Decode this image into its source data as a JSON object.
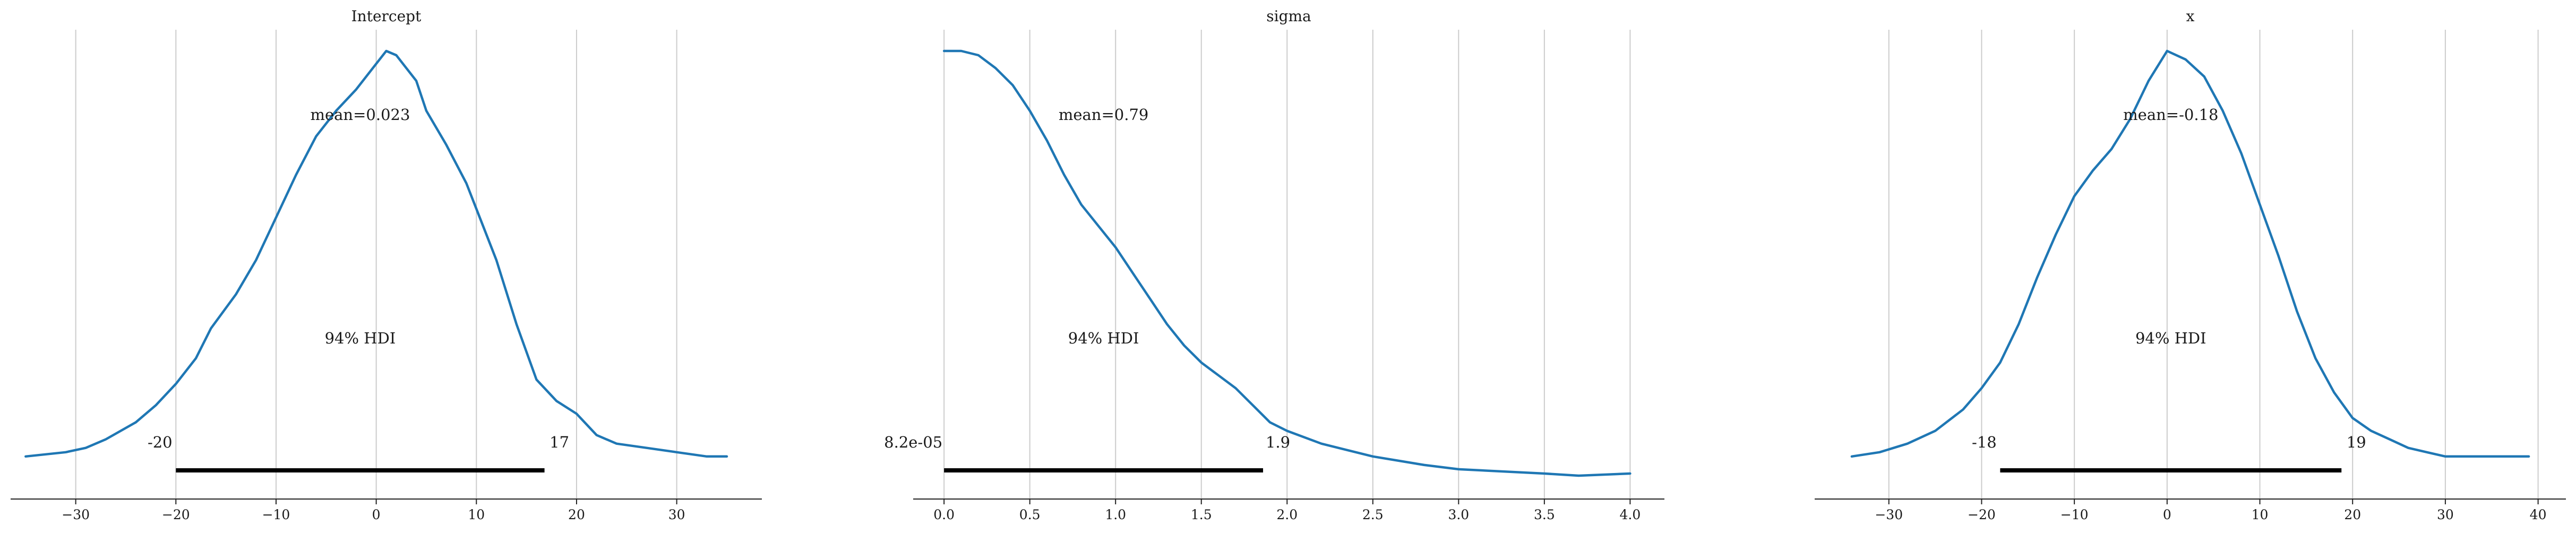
{
  "chart_data": [
    {
      "type": "line",
      "title": "Intercept",
      "mean_label": "mean=0.023",
      "hdi_label": "94% HDI",
      "hdi_low_label": "-20",
      "hdi_high_label": "17",
      "hdi": [
        -20,
        16.8
      ],
      "xlim": [
        -36.5,
        38.5
      ],
      "ylim": [
        0,
        1
      ],
      "xticks": [
        -30,
        -20,
        -10,
        0,
        10,
        20,
        30
      ],
      "xtick_labels": [
        "−30",
        "−20",
        "−10",
        "0",
        "10",
        "20",
        "30"
      ],
      "grid": true,
      "line_color": "#1f77b4",
      "series": [
        {
          "x": [
            -35,
            -31,
            -29,
            -27,
            -24,
            -22,
            -20,
            -18,
            -16.5,
            -14,
            -12,
            -10,
            -8,
            -6,
            -4,
            -2,
            0,
            1,
            2,
            4,
            5,
            7,
            9,
            10,
            12,
            14,
            16,
            18,
            20,
            22,
            24,
            27,
            30,
            33,
            35
          ],
          "y": [
            0.05,
            0.06,
            0.07,
            0.09,
            0.13,
            0.17,
            0.22,
            0.28,
            0.35,
            0.43,
            0.51,
            0.61,
            0.71,
            0.8,
            0.86,
            0.91,
            0.97,
            1.0,
            0.99,
            0.93,
            0.86,
            0.78,
            0.69,
            0.63,
            0.51,
            0.36,
            0.23,
            0.18,
            0.15,
            0.1,
            0.08,
            0.07,
            0.06,
            0.05,
            0.05
          ]
        }
      ]
    },
    {
      "type": "line",
      "title": "sigma",
      "mean_label": "mean=0.79",
      "hdi_label": "94% HDI",
      "hdi_low_label": "8.2e-05",
      "hdi_high_label": "1.9",
      "hdi": [
        0.0,
        1.86
      ],
      "xlim": [
        -0.18,
        4.2
      ],
      "ylim": [
        0,
        1
      ],
      "xticks": [
        0.0,
        0.5,
        1.0,
        1.5,
        2.0,
        2.5,
        3.0,
        3.5,
        4.0
      ],
      "xtick_labels": [
        "0.0",
        "0.5",
        "1.0",
        "1.5",
        "2.0",
        "2.5",
        "3.0",
        "3.5",
        "4.0"
      ],
      "grid": true,
      "line_color": "#1f77b4",
      "series": [
        {
          "x": [
            0.0,
            0.1,
            0.2,
            0.3,
            0.4,
            0.5,
            0.6,
            0.7,
            0.8,
            0.9,
            1.0,
            1.1,
            1.2,
            1.3,
            1.4,
            1.5,
            1.6,
            1.7,
            1.8,
            1.9,
            2.0,
            2.2,
            2.5,
            2.8,
            3.0,
            3.5,
            3.7,
            4.0
          ],
          "y": [
            1.0,
            1.0,
            0.99,
            0.96,
            0.92,
            0.86,
            0.79,
            0.71,
            0.64,
            0.59,
            0.54,
            0.48,
            0.42,
            0.36,
            0.31,
            0.27,
            0.24,
            0.21,
            0.17,
            0.13,
            0.11,
            0.08,
            0.05,
            0.03,
            0.02,
            0.01,
            0.005,
            0.01
          ]
        }
      ]
    },
    {
      "type": "line",
      "title": "x",
      "mean_label": "mean=-0.18",
      "hdi_label": "94% HDI",
      "hdi_low_label": "-18",
      "hdi_high_label": "19",
      "hdi": [
        -18,
        18.8
      ],
      "xlim": [
        -38,
        43
      ],
      "ylim": [
        0,
        1
      ],
      "xticks": [
        -30,
        -20,
        -10,
        0,
        10,
        20,
        30,
        40
      ],
      "xtick_labels": [
        "−30",
        "−20",
        "−10",
        "0",
        "10",
        "20",
        "30",
        "40"
      ],
      "grid": true,
      "line_color": "#1f77b4",
      "series": [
        {
          "x": [
            -34,
            -31,
            -28,
            -25,
            -22,
            -20,
            -18,
            -16,
            -14,
            -12,
            -10,
            -8,
            -6,
            -4,
            -2,
            0,
            2,
            4,
            6,
            8,
            10,
            12,
            14,
            16,
            18,
            20,
            22,
            24,
            26,
            28,
            30,
            33,
            36,
            39
          ],
          "y": [
            0.05,
            0.06,
            0.08,
            0.11,
            0.16,
            0.21,
            0.27,
            0.36,
            0.47,
            0.57,
            0.66,
            0.72,
            0.77,
            0.84,
            0.93,
            1.0,
            0.98,
            0.94,
            0.86,
            0.76,
            0.64,
            0.52,
            0.39,
            0.28,
            0.2,
            0.14,
            0.11,
            0.09,
            0.07,
            0.06,
            0.05,
            0.05,
            0.05,
            0.05
          ]
        }
      ]
    }
  ]
}
